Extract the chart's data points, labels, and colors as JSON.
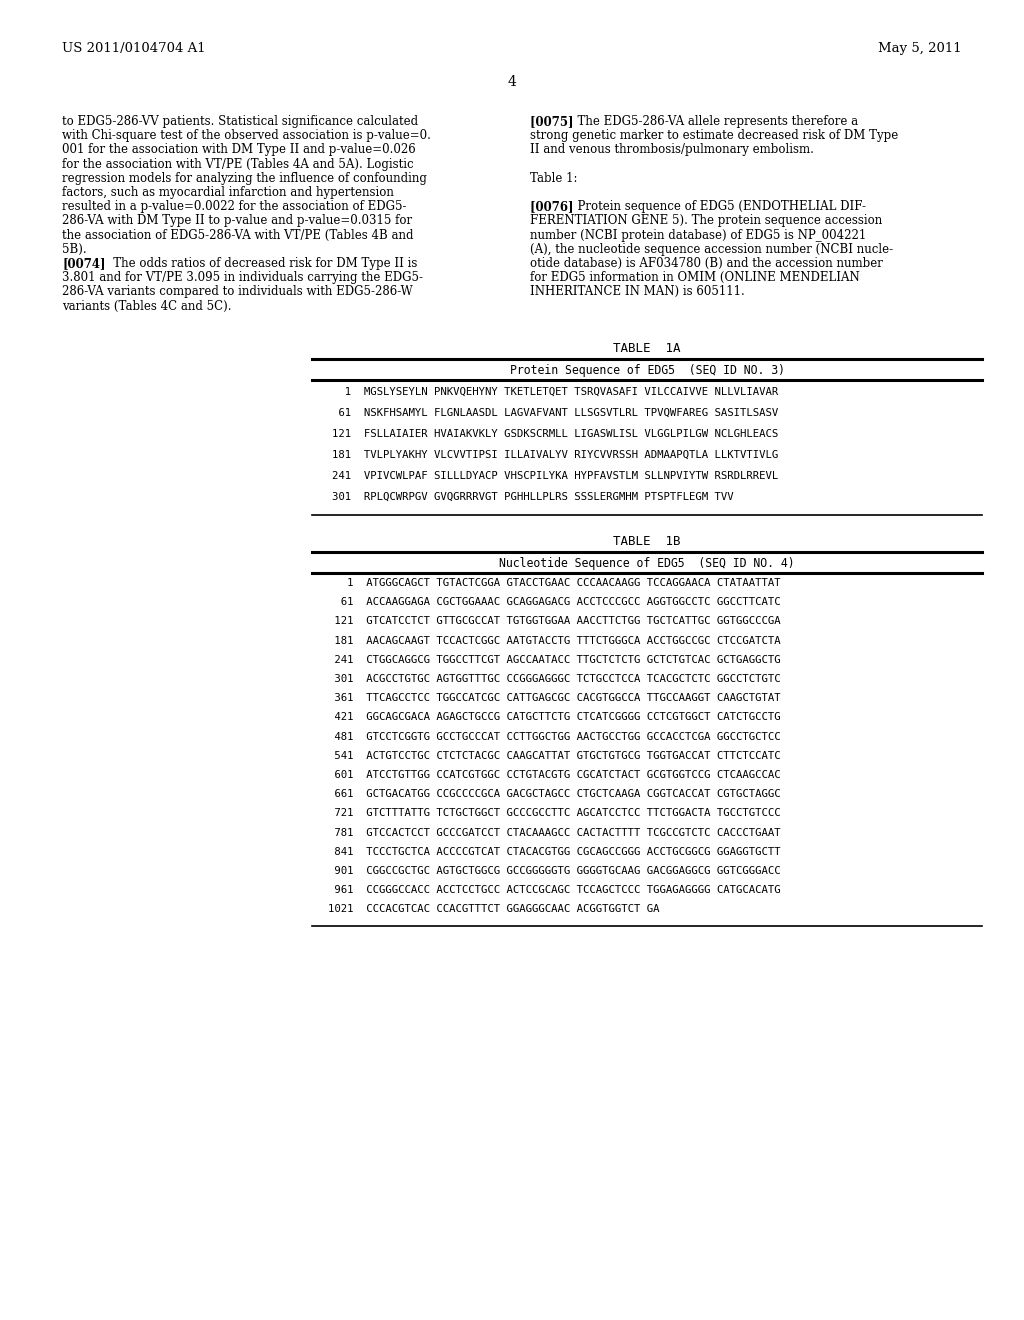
{
  "background_color": "#ffffff",
  "header_left": "US 2011/0104704 A1",
  "header_right": "May 5, 2011",
  "page_number": "4",
  "left_col_text": [
    "to EDG5-286-VV patients. Statistical significance calculated",
    "with Chi-square test of the observed association is p-value=0.",
    "001 for the association with DM Type II and p-value=0.026",
    "for the association with VT/PE (Tables 4A and 5A). Logistic",
    "regression models for analyzing the influence of confounding",
    "factors, such as myocardial infarction and hypertension",
    "resulted in a p-value=0.0022 for the association of EDG5-",
    "286-VA with DM Type II to p-value and p-value=0.0315 for",
    "the association of EDG5-286-VA with VT/PE (Tables 4B and",
    "5B).",
    "[0074]   The odds ratios of decreased risk for DM Type II is",
    "3.801 and for VT/PE 3.095 in individuals carrying the EDG5-",
    "286-VA variants compared to individuals with EDG5-286-W",
    "variants (Tables 4C and 5C)."
  ],
  "right_col_text": [
    "[0075]   The EDG5-286-VA allele represents therefore a",
    "strong genetic marker to estimate decreased risk of DM Type",
    "II and venous thrombosis/pulmonary embolism.",
    "",
    "Table 1:",
    "",
    "[0076]   Protein sequence of EDG5 (ENDOTHELIAL DIF-",
    "FERENTIATION GENE 5). The protein sequence accession",
    "number (NCBI protein database) of EDG5 is NP_004221",
    "(A), the nucleotide sequence accession number (NCBI nucle-",
    "otide database) is AF034780 (B) and the accession number",
    "for EDG5 information in OMIM (ONLINE MENDELIAN",
    "INHERITANCE IN MAN) is 605111."
  ],
  "table1a_title": "TABLE  1A",
  "table1a_header": "Protein Sequence of EDG5  (SEQ ID NO. 3)",
  "table1a_rows": [
    "  1  MGSLYSEYLN PNKVQEHYNY TKETLETQET TSRQVASAFI VILCCAIVVE NLLVLIAVAR",
    " 61  NSKFHSAMYL FLGNLAASDL LAGVAFVANT LLSGSVTLRL TPVQWFAREG SASITLSASV",
    "121  FSLLAIAIER HVAIAKVKLY GSDKSCRMLL LIGASWLISL VLGGLPILGW NCLGHLEACS",
    "181  TVLPLYAKHY VLCVVTIPSI ILLAIVALYV RIYCVVRSSH ADMAAPQTLA LLKTVTIVLG",
    "241  VPIVCWLPAF SILLLDYACP VHSCPILYKA HYPFAVSTLM SLLNPVIYTW RSRDLRREVL",
    "301  RPLQCWRPGV GVQGRRRVGT PGHHLLPLRS SSSLERGMHM PTSPTFLEGM TVV"
  ],
  "table1b_title": "TABLE  1B",
  "table1b_header": "Nucleotide Sequence of EDG5  (SEQ ID NO. 4)",
  "table1b_rows": [
    "   1  ATGGGCAGCT TGTACTCGGA GTACCTGAAC CCCAACAAGG TCCAGGAACA CTATAATTAT",
    "  61  ACCAAGGAGA CGCTGGAAAC GCAGGAGACG ACCTCCCGCC AGGTGGCCTC GGCCTTCATC",
    " 121  GTCATCCTCT GTTGCGCCAT TGTGGTGGAA AACCTTCTGG TGCTCATTGC GGTGGCCCGA",
    " 181  AACAGCAAGT TCCACTCGGC AATGTACCTG TTTCTGGGCA ACCTGGCCGC CTCCGATCTA",
    " 241  CTGGCAGGCG TGGCCTTCGT AGCCAATACC TTGCTCTCTG GCTCTGTCAC GCTGAGGCTG",
    " 301  ACGCCTGTGC AGTGGTTTGC CCGGGAGGGC TCTGCCTCCA TCACGCTCTC GGCCTCTGTC",
    " 361  TTCAGCCTCC TGGCCATCGC CATTGAGCGC CACGTGGCCA TTGCCAAGGT CAAGCTGTAT",
    " 421  GGCAGCGACA AGAGCTGCCG CATGCTTCTG CTCATCGGGG CCTCGTGGCT CATCTGCCTG",
    " 481  GTCCTCGGTG GCCTGCCCAT CCTTGGCTGG AACTGCCTGG GCCACCTCGA GGCCTGCTCC",
    " 541  ACTGTCCTGC CTCTCTACGC CAAGCATTAT GTGCTGTGCG TGGTGACCAT CTTCTCCATC",
    " 601  ATCCTGTTGG CCATCGTGGC CCTGTACGTG CGCATCTACT GCGTGGTCCG CTCAAGCCAC",
    " 661  GCTGACATGG CCGCCCCGCA GACGCTAGCC CTGCTCAAGA CGGTCACCAT CGTGCTAGGC",
    " 721  GTCTTTATTG TCTGCTGGCT GCCCGCCTTC AGCATCCTCC TTCTGGACTA TGCCTGTCCC",
    " 781  GTCCACTCCT GCCCGATCCT CTACAAAGCC CACTACTTTT TCGCCGTCTC CACCCTGAAT",
    " 841  TCCCTGCTCA ACCCCGTCAT CTACACGTGG CGCAGCCGGG ACCTGCGGCG GGAGGTGCTT",
    " 901  CGGCCGCTGC AGTGCTGGCG GCCGGGGGTG GGGGTGCAAG GACGGAGGCG GGTCGGGACC",
    " 961  CCGGGCCACC ACCTCCTGCC ACTCCGCAGC TCCAGCTCCC TGGAGAGGGG CATGCACATG",
    "1021  CCCACGTCAC CCACGTTTCT GGAGGGCAAC ACGGTGGTCT GA"
  ]
}
